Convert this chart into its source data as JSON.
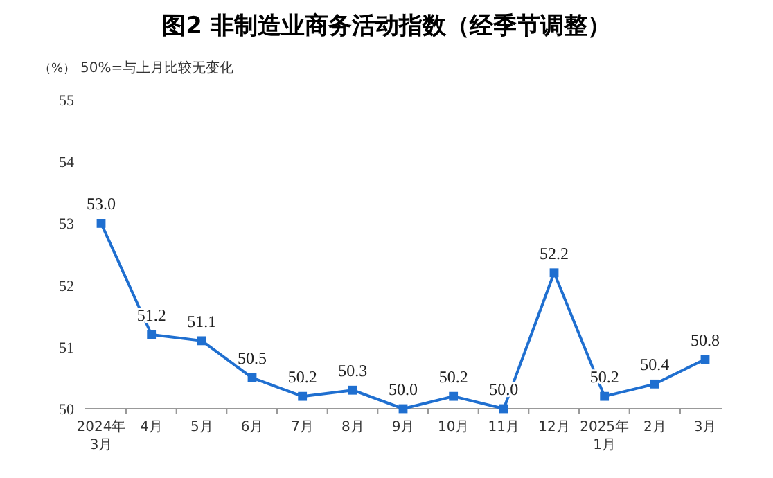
{
  "chart_data": {
    "type": "line",
    "title": "图2  非制造业商务活动指数（经季节调整）",
    "ylabel": "（%）",
    "annotations": [
      "50%=与上月比较无变化"
    ],
    "categories": [
      "2024年\n3月",
      "4月",
      "5月",
      "6月",
      "7月",
      "8月",
      "9月",
      "10月",
      "11月",
      "12月",
      "2025年\n1月",
      "2月",
      "3月"
    ],
    "series": [
      {
        "color": "#1f6fd0",
        "values": [
          53.0,
          51.2,
          51.1,
          50.5,
          50.2,
          50.3,
          50.0,
          50.2,
          50.0,
          52.2,
          50.2,
          50.4,
          50.8
        ],
        "value_labels": [
          "53.0",
          "51.2",
          "51.1",
          "50.5",
          "50.2",
          "50.3",
          "50.0",
          "50.2",
          "50.0",
          "52.2",
          "50.2",
          "50.4",
          "50.8"
        ]
      }
    ],
    "ylim": [
      50,
      55
    ],
    "yticks": [
      50,
      51,
      52,
      53,
      54,
      55
    ],
    "marker": "square",
    "line_style": "solid"
  }
}
